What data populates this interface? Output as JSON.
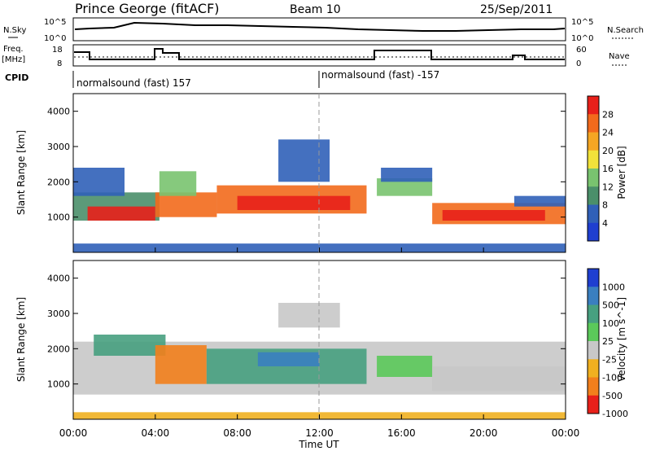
{
  "header": {
    "station": "Prince George (fitACF)",
    "beam": "Beam 10",
    "date": "25/Sep/2011"
  },
  "top_panels": {
    "nsky_label": "N.Sky",
    "nsky_ticks": [
      "10^5",
      "10^0"
    ],
    "nsearch_label": "N.Search",
    "nsearch_ticks": [
      "10^5",
      "10^0"
    ],
    "freq_label_1": "Freq.",
    "freq_label_2": "[MHz]",
    "freq_ticks": [
      "18",
      "8"
    ],
    "nave_label": "Nave",
    "nave_ticks": [
      "60",
      "0"
    ],
    "cpid_label": "CPID",
    "cpid_segments": [
      "normalsound (fast) 157",
      "normalsound (fast) -157"
    ]
  },
  "colors": {
    "power_scale": [
      "#1f3fd0",
      "#3060b8",
      "#4a8f6a",
      "#79c36f",
      "#f2e23a",
      "#f5a623",
      "#f26a1c",
      "#e8201a"
    ],
    "velocity_scale": [
      "#1f3fd0",
      "#3a7fc0",
      "#47a080",
      "#5bc95a",
      "#c8c8c8",
      "#f0b020",
      "#f27f1c",
      "#e8201a"
    ]
  },
  "chart_data": [
    {
      "type": "heatmap",
      "title": "",
      "xlabel": "Time UT",
      "ylabel": "Slant Range [km]",
      "x_ticks": [
        "00:00",
        "04:00",
        "08:00",
        "12:00",
        "16:00",
        "20:00",
        "00:00"
      ],
      "y_ticks": [
        "1000",
        "2000",
        "3000",
        "4000"
      ],
      "ylim": [
        0,
        4500
      ],
      "colorbar_label": "Power [dB]",
      "colorbar_ticks": [
        "4",
        "8",
        "12",
        "16",
        "20",
        "24",
        "28"
      ]
    },
    {
      "type": "heatmap",
      "title": "",
      "xlabel": "Time UT",
      "ylabel": "Slant Range [km]",
      "x_ticks": [
        "00:00",
        "04:00",
        "08:00",
        "12:00",
        "16:00",
        "20:00",
        "00:00"
      ],
      "y_ticks": [
        "1000",
        "2000",
        "3000",
        "4000"
      ],
      "ylim": [
        0,
        4500
      ],
      "colorbar_label": "Velocity [m s^-1]",
      "colorbar_ticks": [
        "1000",
        "500",
        "100",
        "25",
        "-25",
        "-100",
        "-500",
        "-1000"
      ]
    }
  ]
}
